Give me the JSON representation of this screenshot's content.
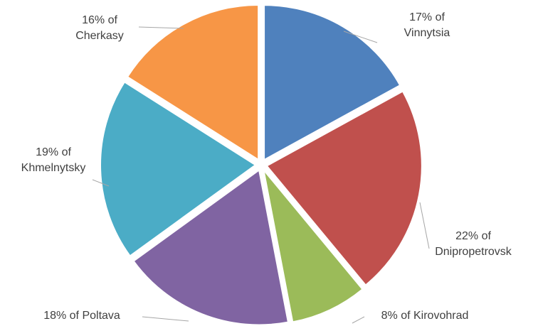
{
  "chart_data": {
    "type": "pie",
    "values": [
      17,
      22,
      8,
      18,
      19,
      16
    ],
    "value_labels": [
      "17% of Vinnytsia",
      "22% of Dnipropetrovsk",
      "8% of Kirovohrad",
      "18% of Poltava",
      "19% of Khmelnytsky",
      "16% of Cherkasy"
    ],
    "colors": [
      "#4f81bd",
      "#c0504d",
      "#9bbb59",
      "#8064a2",
      "#4bacc6",
      "#f79646"
    ]
  }
}
